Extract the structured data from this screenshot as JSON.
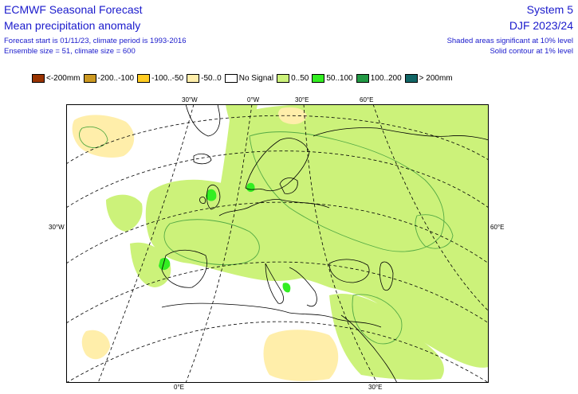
{
  "header": {
    "title1": "ECMWF Seasonal Forecast",
    "title2": "Mean precipitation anomaly",
    "info1": "Forecast start is 01/11/23, climate period is 1993-2016",
    "info2": "Ensemble size = 51, climate size = 600",
    "system": "System 5",
    "season": "DJF 2023/24",
    "sig1": "Shaded areas significant at 10% level",
    "sig2": "Solid contour at 1% level"
  },
  "legend": [
    {
      "label": "<-200mm",
      "color": "#993300"
    },
    {
      "label": "-200..-100",
      "color": "#cc9922"
    },
    {
      "label": "-100..-50",
      "color": "#ffcc22"
    },
    {
      "label": "-50..0",
      "color": "#ffeeaa"
    },
    {
      "label": "No Signal",
      "color": "#ffffff"
    },
    {
      "label": "0..50",
      "color": "#ccf27a"
    },
    {
      "label": "50..100",
      "color": "#33ee22"
    },
    {
      "label": "100..200",
      "color": "#229944"
    },
    {
      "label": "> 200mm",
      "color": "#116666"
    }
  ],
  "map": {
    "coord_labels": {
      "top_30w": "30°W",
      "top_0": "0°W",
      "top_30e": "30°E",
      "top_60e": "60°E",
      "left_30w": "30°W",
      "right_60e": "60°E",
      "bottom_0": "0°E",
      "bottom_30e": "30°E"
    },
    "colors": {
      "positive": "#ccf27a",
      "negative": "#ffeeaa",
      "significant": "#33ee22",
      "contour": "#55aa44"
    }
  }
}
